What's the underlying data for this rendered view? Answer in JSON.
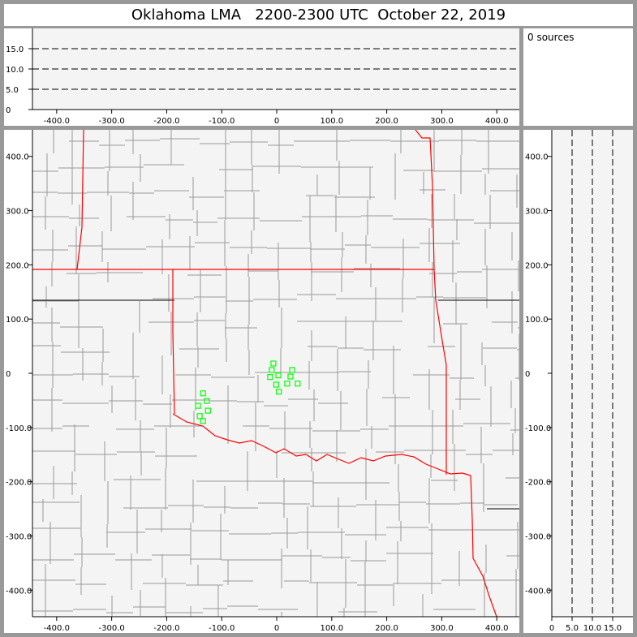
{
  "title": "Oklahoma LMA   2200-2300 UTC  October 22, 2019",
  "sources_text": "0 sources",
  "colors": {
    "state_border": "#ff0000",
    "county_border": "#999999",
    "station": "#00ff00",
    "plot_bg": "#f4f4f4",
    "frame": "#999999"
  },
  "chart_data": [
    {
      "type": "scatter",
      "panel": "plan-view",
      "xlim": [
        -444,
        441
      ],
      "ylim": [
        -449,
        449
      ],
      "x_ticks": [
        "-400.0",
        "-300.0",
        "-200.0",
        "-100.0",
        "0",
        "100.0",
        "200.0",
        "300.0",
        "400.0"
      ],
      "y_ticks": [
        "400.0",
        "300.0",
        "200.0",
        "100.0",
        "0",
        "-100.0",
        "-200.0",
        "-300.0",
        "-400.0"
      ],
      "basemap": "county and state boundaries",
      "stations": [
        [
          -6,
          18
        ],
        [
          -9,
          6
        ],
        [
          -12,
          -7
        ],
        [
          3,
          -4
        ],
        [
          -1,
          -21
        ],
        [
          4,
          -34
        ],
        [
          19,
          -19
        ],
        [
          25,
          -6
        ],
        [
          28,
          6
        ],
        [
          38,
          -19
        ],
        [
          -134,
          -37
        ],
        [
          -127,
          -51
        ],
        [
          -143,
          -60
        ],
        [
          -125,
          -69
        ],
        [
          -140,
          -79
        ],
        [
          -134,
          -88
        ]
      ],
      "marker": "open-square"
    },
    {
      "type": "scatter",
      "panel": "east-west vs altitude",
      "xlim": [
        -444,
        441
      ],
      "ylim": [
        0,
        20
      ],
      "x_ticks": [
        "-400.0",
        "-300.0",
        "-200.0",
        "-100.0",
        "0",
        "100.0",
        "200.0",
        "300.0",
        "400.0"
      ],
      "y_ticks": [
        "15.0",
        "10.0",
        "5.0",
        "0"
      ],
      "dashed_lines_at": [
        5,
        10,
        15
      ],
      "points": []
    },
    {
      "type": "scatter",
      "panel": "altitude vs north-south",
      "xlim": [
        0,
        20
      ],
      "ylim": [
        -449,
        449
      ],
      "x_ticks": [
        "0",
        "5.0",
        "10.0",
        "15.0"
      ],
      "y_ticks": [
        "400.0",
        "300.0",
        "200.0",
        "100.0",
        "0",
        "-100.0",
        "-200.0",
        "-300.0",
        "-400.0"
      ],
      "dashed_lines_at": [
        5,
        10,
        15
      ],
      "points": []
    }
  ]
}
